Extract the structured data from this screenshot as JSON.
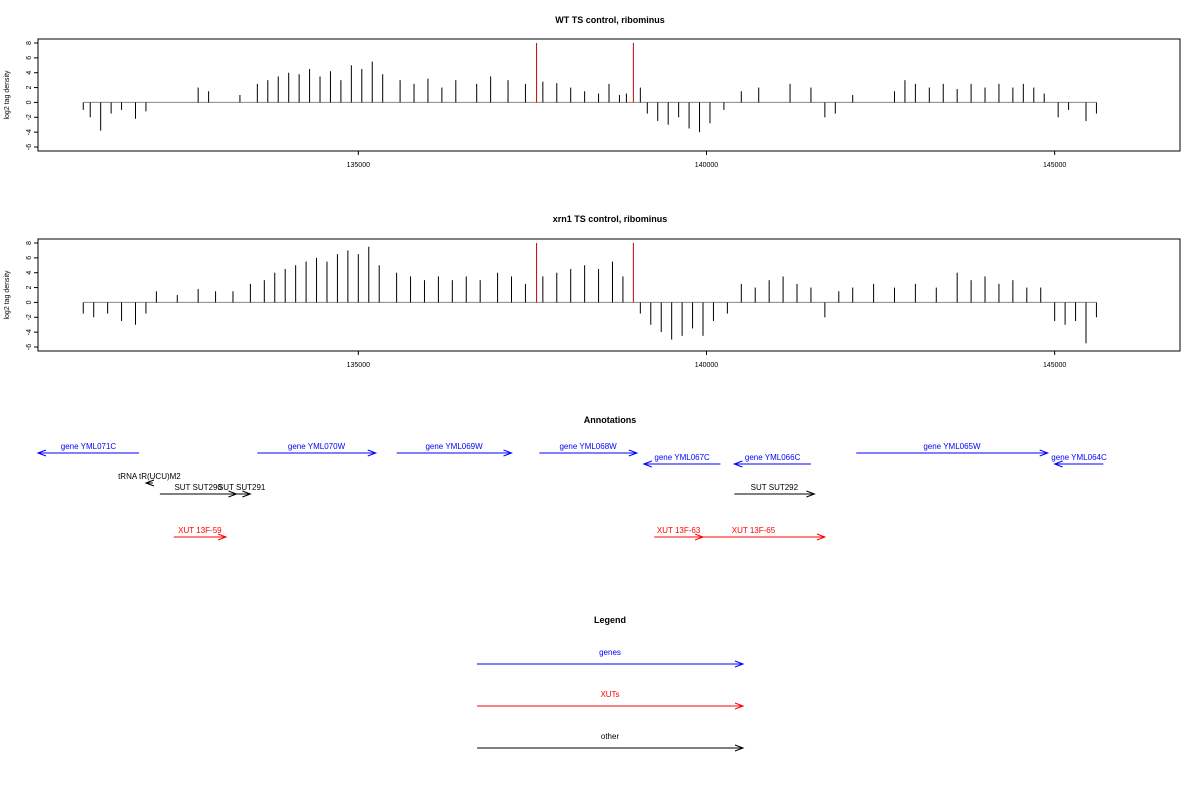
{
  "colors": {
    "gene": "#0000ff",
    "xut": "#ff0000",
    "other": "#000000",
    "marker": "#cc0000",
    "bar": "#000000",
    "baseline": "#888888"
  },
  "chart_data": [
    {
      "type": "bar",
      "title": "WT TS control, ribominus",
      "ylabel": "log2 tag density",
      "xlim": [
        130400,
        146800
      ],
      "ylim": [
        -6,
        8
      ],
      "x_ticks": [
        135000,
        140000,
        145000
      ],
      "y_ticks": [
        -6,
        -4,
        -2,
        0,
        2,
        4,
        6,
        8
      ],
      "markers_x": [
        137560,
        138950
      ],
      "density": [
        [
          131050,
          -1.0
        ],
        [
          131150,
          -2.0
        ],
        [
          131300,
          -3.8
        ],
        [
          131450,
          -1.5
        ],
        [
          131600,
          -1.0
        ],
        [
          131800,
          -2.2
        ],
        [
          131950,
          -1.2
        ],
        [
          132700,
          2.0
        ],
        [
          132850,
          1.5
        ],
        [
          133300,
          1.0
        ],
        [
          133550,
          2.5
        ],
        [
          133700,
          3.0
        ],
        [
          133850,
          3.5
        ],
        [
          134000,
          4.0
        ],
        [
          134150,
          3.8
        ],
        [
          134300,
          4.5
        ],
        [
          134450,
          3.5
        ],
        [
          134600,
          4.2
        ],
        [
          134750,
          3.0
        ],
        [
          134900,
          5.0
        ],
        [
          135050,
          4.5
        ],
        [
          135200,
          5.5
        ],
        [
          135350,
          3.8
        ],
        [
          135600,
          3.0
        ],
        [
          135800,
          2.5
        ],
        [
          136000,
          3.2
        ],
        [
          136200,
          2.0
        ],
        [
          136400,
          3.0
        ],
        [
          136700,
          2.5
        ],
        [
          136900,
          3.5
        ],
        [
          137150,
          3.0
        ],
        [
          137400,
          2.5
        ],
        [
          137650,
          2.8
        ],
        [
          137850,
          2.6
        ],
        [
          138050,
          2.0
        ],
        [
          138250,
          1.5
        ],
        [
          138450,
          1.2
        ],
        [
          138600,
          2.5
        ],
        [
          138750,
          1.0
        ],
        [
          138850,
          1.2
        ],
        [
          139050,
          2.0
        ],
        [
          139150,
          -1.5
        ],
        [
          139300,
          -2.5
        ],
        [
          139450,
          -3.0
        ],
        [
          139600,
          -2.0
        ],
        [
          139750,
          -3.5
        ],
        [
          139900,
          -4.0
        ],
        [
          140050,
          -2.8
        ],
        [
          140250,
          -1.0
        ],
        [
          140500,
          1.5
        ],
        [
          140750,
          2.0
        ],
        [
          141200,
          2.5
        ],
        [
          141500,
          2.0
        ],
        [
          141700,
          -2.0
        ],
        [
          141850,
          -1.5
        ],
        [
          142100,
          1.0
        ],
        [
          142700,
          1.5
        ],
        [
          142850,
          3.0
        ],
        [
          143000,
          2.5
        ],
        [
          143200,
          2.0
        ],
        [
          143400,
          2.5
        ],
        [
          143600,
          1.8
        ],
        [
          143800,
          2.5
        ],
        [
          144000,
          2.0
        ],
        [
          144200,
          2.5
        ],
        [
          144400,
          2.0
        ],
        [
          144550,
          2.5
        ],
        [
          144700,
          2.0
        ],
        [
          144850,
          1.2
        ],
        [
          145050,
          -2.0
        ],
        [
          145200,
          -1.0
        ],
        [
          145450,
          -2.5
        ],
        [
          145600,
          -1.5
        ]
      ]
    },
    {
      "type": "bar",
      "title": "xrn1 TS control, ribominus",
      "ylabel": "log2 tag density",
      "xlim": [
        130400,
        146800
      ],
      "ylim": [
        -6,
        8
      ],
      "x_ticks": [
        135000,
        140000,
        145000
      ],
      "y_ticks": [
        -6,
        -4,
        -2,
        0,
        2,
        4,
        6,
        8
      ],
      "markers_x": [
        137560,
        138950
      ],
      "density": [
        [
          131050,
          -1.5
        ],
        [
          131200,
          -2.0
        ],
        [
          131400,
          -1.5
        ],
        [
          131600,
          -2.5
        ],
        [
          131800,
          -3.0
        ],
        [
          131950,
          -1.5
        ],
        [
          132100,
          1.5
        ],
        [
          132400,
          1.0
        ],
        [
          132700,
          1.8
        ],
        [
          132950,
          1.5
        ],
        [
          133200,
          1.5
        ],
        [
          133450,
          2.5
        ],
        [
          133650,
          3.0
        ],
        [
          133800,
          4.0
        ],
        [
          133950,
          4.5
        ],
        [
          134100,
          5.0
        ],
        [
          134250,
          5.5
        ],
        [
          134400,
          6.0
        ],
        [
          134550,
          5.5
        ],
        [
          134700,
          6.5
        ],
        [
          134850,
          7.0
        ],
        [
          135000,
          6.5
        ],
        [
          135150,
          7.5
        ],
        [
          135300,
          5.0
        ],
        [
          135550,
          4.0
        ],
        [
          135750,
          3.5
        ],
        [
          135950,
          3.0
        ],
        [
          136150,
          3.5
        ],
        [
          136350,
          3.0
        ],
        [
          136550,
          3.5
        ],
        [
          136750,
          3.0
        ],
        [
          137000,
          4.0
        ],
        [
          137200,
          3.5
        ],
        [
          137400,
          2.5
        ],
        [
          137650,
          3.5
        ],
        [
          137850,
          4.0
        ],
        [
          138050,
          4.5
        ],
        [
          138250,
          5.0
        ],
        [
          138450,
          4.5
        ],
        [
          138650,
          5.5
        ],
        [
          138800,
          3.5
        ],
        [
          139050,
          -1.5
        ],
        [
          139200,
          -3.0
        ],
        [
          139350,
          -4.0
        ],
        [
          139500,
          -5.0
        ],
        [
          139650,
          -4.5
        ],
        [
          139800,
          -3.5
        ],
        [
          139950,
          -4.5
        ],
        [
          140100,
          -2.5
        ],
        [
          140300,
          -1.5
        ],
        [
          140500,
          2.5
        ],
        [
          140700,
          2.0
        ],
        [
          140900,
          3.0
        ],
        [
          141100,
          3.5
        ],
        [
          141300,
          2.5
        ],
        [
          141500,
          2.0
        ],
        [
          141700,
          -2.0
        ],
        [
          141900,
          1.5
        ],
        [
          142100,
          2.0
        ],
        [
          142400,
          2.5
        ],
        [
          142700,
          2.0
        ],
        [
          143000,
          2.5
        ],
        [
          143300,
          2.0
        ],
        [
          143600,
          4.0
        ],
        [
          143800,
          3.0
        ],
        [
          144000,
          3.5
        ],
        [
          144200,
          2.5
        ],
        [
          144400,
          3.0
        ],
        [
          144600,
          2.0
        ],
        [
          144800,
          2.0
        ],
        [
          145000,
          -2.5
        ],
        [
          145150,
          -3.0
        ],
        [
          145300,
          -2.5
        ],
        [
          145450,
          -5.5
        ],
        [
          145600,
          -2.0
        ]
      ]
    }
  ],
  "annotations": {
    "title": "Annotations",
    "items": [
      {
        "label": "gene YML071C",
        "kind": "gene",
        "dir": "left",
        "x1": 130400,
        "x2": 131850,
        "row": 0
      },
      {
        "label": "gene YML070W",
        "kind": "gene",
        "dir": "right",
        "x1": 133550,
        "x2": 135250,
        "row": 0
      },
      {
        "label": "gene YML069W",
        "kind": "gene",
        "dir": "right",
        "x1": 135550,
        "x2": 137200,
        "row": 0
      },
      {
        "label": "gene YML068W",
        "kind": "gene",
        "dir": "right",
        "x1": 137600,
        "x2": 139000,
        "row": 0
      },
      {
        "label": "gene YML067C",
        "kind": "gene",
        "dir": "left",
        "x1": 139100,
        "x2": 140200,
        "row": 1
      },
      {
        "label": "gene YML066C",
        "kind": "gene",
        "dir": "left",
        "x1": 140400,
        "x2": 141500,
        "row": 1
      },
      {
        "label": "gene YML065W",
        "kind": "gene",
        "dir": "right",
        "x1": 142150,
        "x2": 144900,
        "row": 0
      },
      {
        "label": "gene YML064C",
        "kind": "gene",
        "dir": "left",
        "x1": 145000,
        "x2": 145700,
        "row": 1
      },
      {
        "label": "tRNA tR(UCU)M2",
        "kind": "other",
        "dir": "left",
        "x1": 131950,
        "x2": 132050,
        "row": 2
      },
      {
        "label": "SUT SUT290",
        "kind": "other",
        "dir": "right",
        "x1": 132150,
        "x2": 133250,
        "row": 3
      },
      {
        "label": "SUT SUT291",
        "kind": "other",
        "dir": "right",
        "x1": 133200,
        "x2": 133450,
        "row": 3
      },
      {
        "label": "SUT SUT292",
        "kind": "other",
        "dir": "right",
        "x1": 140400,
        "x2": 141550,
        "row": 3
      },
      {
        "label": "XUT 13F-59",
        "kind": "xut",
        "dir": "right",
        "x1": 132350,
        "x2": 133100,
        "row": 4
      },
      {
        "label": "XUT 13F-63",
        "kind": "xut",
        "dir": "right",
        "x1": 139250,
        "x2": 139950,
        "row": 4
      },
      {
        "label": "XUT 13F-65",
        "kind": "xut",
        "dir": "right",
        "x1": 139650,
        "x2": 141700,
        "row": 4
      }
    ]
  },
  "legend": {
    "title": "Legend",
    "items": [
      {
        "label": "genes",
        "kind": "gene"
      },
      {
        "label": "XUTs",
        "kind": "xut"
      },
      {
        "label": "other",
        "kind": "other"
      }
    ]
  }
}
